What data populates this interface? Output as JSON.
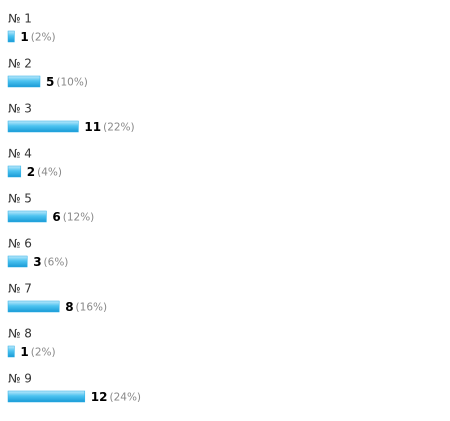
{
  "chart_data": {
    "type": "bar",
    "orientation": "horizontal",
    "color": "#29aee6",
    "categories": [
      "№ 1",
      "№ 2",
      "№ 3",
      "№ 4",
      "№ 5",
      "№ 6",
      "№ 7",
      "№ 8",
      "№ 9"
    ],
    "values": [
      1,
      5,
      11,
      2,
      6,
      3,
      8,
      1,
      12
    ],
    "shares": [
      2,
      10,
      22,
      4,
      12,
      6,
      16,
      2,
      24
    ],
    "share_labels": [
      "(2%)",
      "(10%)",
      "(22%)",
      "(4%)",
      "(12%)",
      "(6%)",
      "(16%)",
      "(2%)",
      "(24%)"
    ]
  }
}
